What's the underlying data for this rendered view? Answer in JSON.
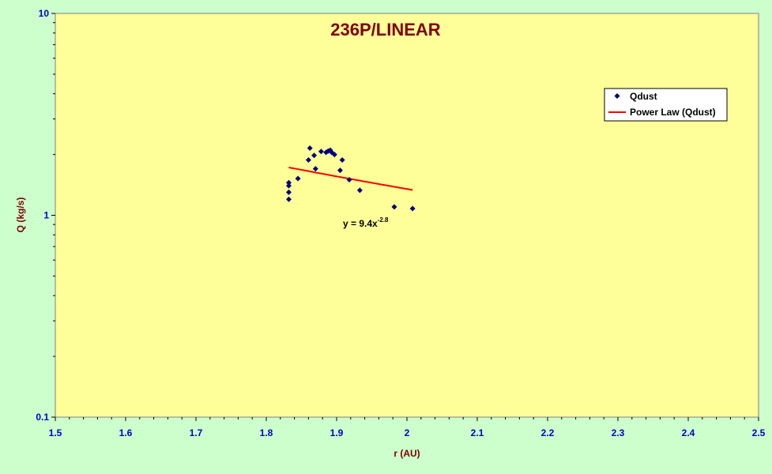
{
  "chart_data": {
    "type": "scatter",
    "title": "236P/LINEAR",
    "xlabel": "r (AU)",
    "ylabel": "Q (kg/s)",
    "xlim": [
      1.5,
      2.5
    ],
    "ylim": [
      0.1,
      10
    ],
    "yscale": "log",
    "x_ticks": [
      "1.5",
      "1.6",
      "1.7",
      "1.8",
      "1.9",
      "2",
      "2.1",
      "2.2",
      "2.3",
      "2.4",
      "2.5"
    ],
    "y_ticks": [
      "0.1",
      "1",
      "10"
    ],
    "grid": false,
    "legend_position": "top-right",
    "series": [
      {
        "name": "Qdust",
        "kind": "points",
        "color": "#000080",
        "points": [
          {
            "x": 1.832,
            "y": 1.45
          },
          {
            "x": 1.832,
            "y": 1.4
          },
          {
            "x": 1.832,
            "y": 1.3
          },
          {
            "x": 1.832,
            "y": 1.2
          },
          {
            "x": 1.845,
            "y": 1.52
          },
          {
            "x": 1.86,
            "y": 1.88
          },
          {
            "x": 1.862,
            "y": 2.15
          },
          {
            "x": 1.868,
            "y": 1.98
          },
          {
            "x": 1.87,
            "y": 1.7
          },
          {
            "x": 1.878,
            "y": 2.07
          },
          {
            "x": 1.885,
            "y": 2.05
          },
          {
            "x": 1.888,
            "y": 2.08
          },
          {
            "x": 1.891,
            "y": 2.1
          },
          {
            "x": 1.893,
            "y": 2.05
          },
          {
            "x": 1.897,
            "y": 2.0
          },
          {
            "x": 1.905,
            "y": 1.67
          },
          {
            "x": 1.908,
            "y": 1.88
          },
          {
            "x": 1.918,
            "y": 1.5
          },
          {
            "x": 1.933,
            "y": 1.33
          },
          {
            "x": 1.982,
            "y": 1.1
          },
          {
            "x": 2.008,
            "y": 1.08
          }
        ]
      },
      {
        "name": "Power Law (Qdust)",
        "kind": "trendline",
        "color": "#ff0000",
        "coefficient": 9.4,
        "exponent": -2.8,
        "x_range": [
          1.832,
          2.008
        ]
      }
    ],
    "annotations": [
      {
        "text": "y = 9.4x",
        "superscript": "-2.8",
        "x": 1.97,
        "y": 0.97
      }
    ]
  }
}
